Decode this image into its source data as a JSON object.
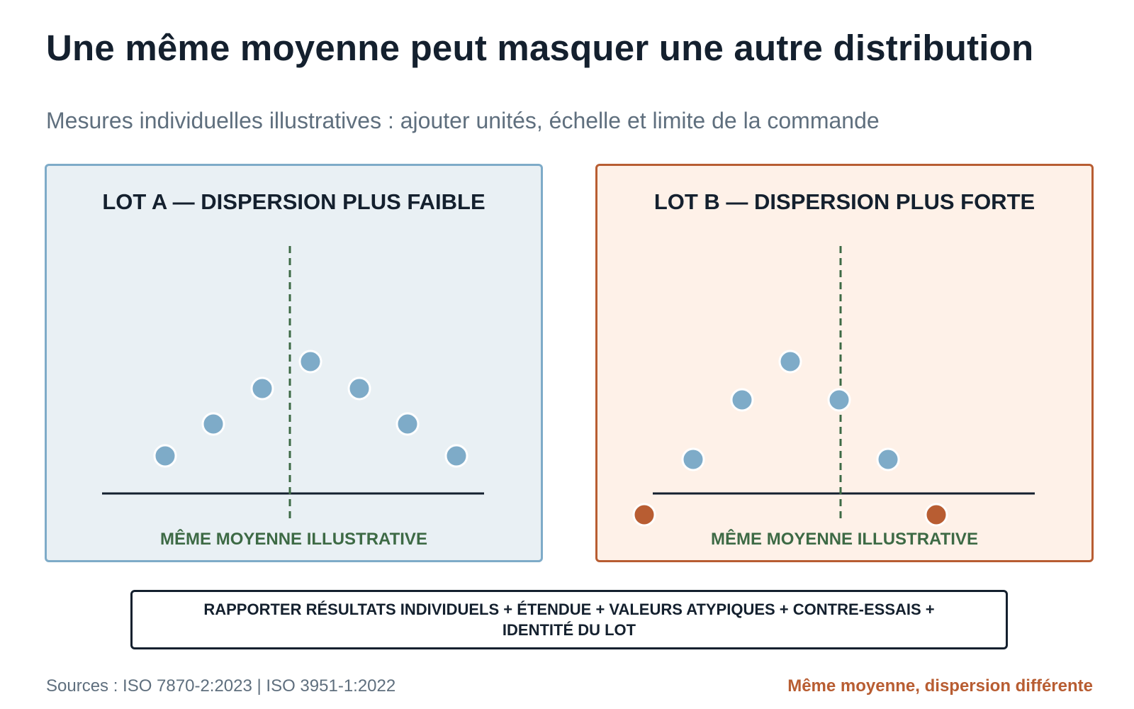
{
  "header": {
    "title": "Une même moyenne peut masquer une autre distribution",
    "subtitle": "Mesures individuelles illustratives : ajouter unités, échelle et limite de la commande"
  },
  "panels": [
    {
      "title": "LOT A — DISPERSION PLUS FAIBLE",
      "mean_label": "MÊME MOYENNE ILLUSTRATIVE",
      "border_color": "#7eabc8",
      "background_color": "#e9f0f4"
    },
    {
      "title": "LOT B — DISPERSION PLUS FORTE",
      "mean_label": "MÊME MOYENNE ILLUSTRATIVE",
      "border_color": "#b85d32",
      "background_color": "#fef1e8"
    }
  ],
  "callout": {
    "text": "RAPPORTER RÉSULTATS INDIVIDUELS + ÉTENDUE + VALEURS ATYPIQUES + CONTRE-ESSAIS + IDENTITÉ DU LOT"
  },
  "footer": {
    "sources": "Sources : ISO 7870-2:2023 | ISO 3951-1:2022",
    "note": "Même moyenne, dispersion différente"
  },
  "colors": {
    "point_regular": "#7eabc8",
    "point_outlier": "#b85d32",
    "mean_line": "#3d6a45",
    "baseline": "#14202e",
    "title": "#14202e",
    "muted_text": "#5f6f7e"
  }
}
